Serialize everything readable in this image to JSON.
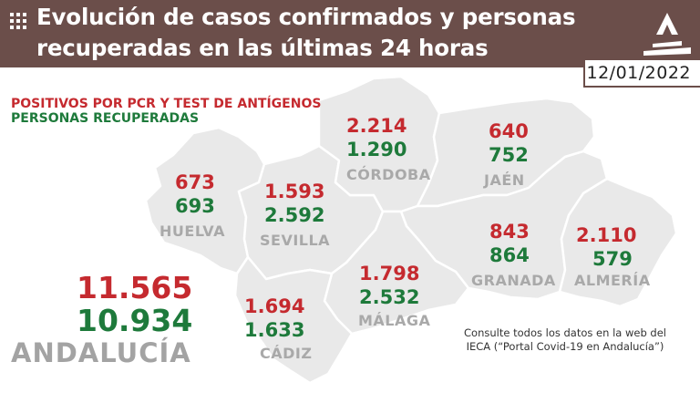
{
  "header": {
    "title_line1": "Evolución de casos confirmados y personas",
    "title_line2": "recuperadas en las últimas 24 horas",
    "date": "12/01/2022",
    "background_color": "#6b4e4a",
    "logo_icon": "junta-andalucia-logo-icon",
    "menu_icon": "grid-icon"
  },
  "legend": {
    "positives": "POSITIVOS POR PCR Y TEST DE ANTÍGENOS",
    "recovered": "PERSONAS RECUPERADAS",
    "positives_color": "#c52a2f",
    "recovered_color": "#1e7a3b"
  },
  "provinces": {
    "huelva": {
      "name": "HUELVA",
      "positives": "673",
      "recovered": "693"
    },
    "sevilla": {
      "name": "SEVILLA",
      "positives": "1.593",
      "recovered": "2.592"
    },
    "cordoba": {
      "name": "CÓRDOBA",
      "positives": "2.214",
      "recovered": "1.290"
    },
    "jaen": {
      "name": "JAÉN",
      "positives": "640",
      "recovered": "752"
    },
    "granada": {
      "name": "GRANADA",
      "positives": "843",
      "recovered": "864"
    },
    "almeria": {
      "name": "ALMERÍA",
      "positives": "2.110",
      "recovered": "579"
    },
    "malaga": {
      "name": "MÁLAGA",
      "positives": "1.798",
      "recovered": "2.532"
    },
    "cadiz": {
      "name": "CÁDIZ",
      "positives": "1.694",
      "recovered": "1.633"
    }
  },
  "total": {
    "name": "ANDALUCÍA",
    "positives": "11.565",
    "recovered": "10.934"
  },
  "note": {
    "line1": "Consulte todos los datos en la web del",
    "line2": "IECA (“Portal Covid-19 en Andalucía”)"
  }
}
